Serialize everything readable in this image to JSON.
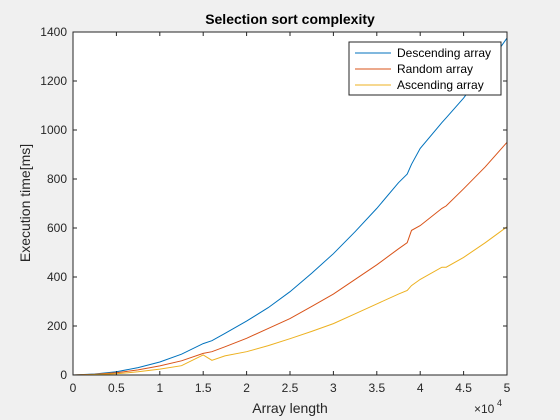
{
  "chart_data": {
    "type": "line",
    "title": "Selection sort complexity",
    "xlabel": "Array length",
    "ylabel": "Execution time[ms]",
    "x_exponent_label": "×10",
    "x_exponent_power": "4",
    "xlim": [
      0,
      5
    ],
    "ylim": [
      0,
      1400
    ],
    "xticks": [
      "0",
      "0.5",
      "1",
      "1.5",
      "2",
      "2.5",
      "3",
      "3.5",
      "4",
      "4.5",
      "5"
    ],
    "yticks": [
      "0",
      "200",
      "400",
      "600",
      "800",
      "1000",
      "1200",
      "1400"
    ],
    "grid": false,
    "legend_position": "top-right",
    "x": [
      0,
      0.25,
      0.5,
      0.75,
      1,
      1.25,
      1.5,
      1.6,
      1.75,
      2,
      2.25,
      2.5,
      2.75,
      3,
      3.25,
      3.5,
      3.75,
      3.85,
      3.9,
      4,
      4.25,
      4.3,
      4.5,
      4.75,
      5
    ],
    "series": [
      {
        "name": "Descending array",
        "color": "#0072BD",
        "values": [
          0,
          4,
          13,
          30,
          53,
          85,
          128,
          140,
          170,
          220,
          275,
          340,
          415,
          495,
          585,
          680,
          785,
          820,
          860,
          925,
          1030,
          1050,
          1130,
          1250,
          1375
        ]
      },
      {
        "name": "Random array",
        "color": "#D95319",
        "values": [
          0,
          3,
          9,
          21,
          37,
          58,
          88,
          95,
          115,
          150,
          190,
          230,
          280,
          330,
          390,
          450,
          515,
          540,
          590,
          610,
          680,
          690,
          760,
          850,
          950
        ]
      },
      {
        "name": "Ascending array",
        "color": "#EDB120",
        "values": [
          0,
          2,
          5,
          13,
          24,
          38,
          82,
          60,
          78,
          95,
          120,
          148,
          178,
          210,
          250,
          290,
          330,
          345,
          365,
          390,
          440,
          440,
          480,
          540,
          605
        ]
      }
    ]
  }
}
